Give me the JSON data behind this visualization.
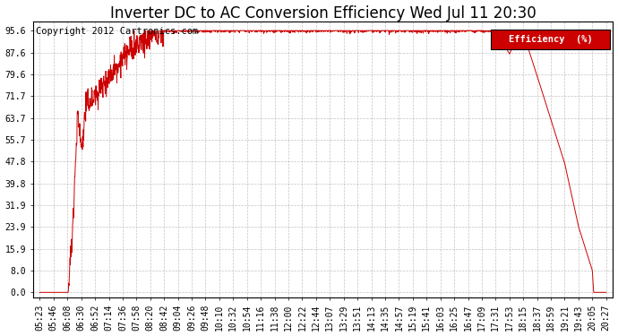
{
  "title": "Inverter DC to AC Conversion Efficiency Wed Jul 11 20:30",
  "copyright": "Copyright 2012 Cartronics.com",
  "legend_label": "Efficiency  (%)",
  "legend_bg": "#cc0000",
  "legend_fg": "#ffffff",
  "line_color": "#cc0000",
  "bg_color": "#ffffff",
  "grid_color": "#aaaaaa",
  "yticks": [
    0.0,
    8.0,
    15.9,
    23.9,
    31.9,
    39.8,
    47.8,
    55.7,
    63.7,
    71.7,
    79.6,
    87.6,
    95.6
  ],
  "xtick_labels": [
    "05:23",
    "05:46",
    "06:08",
    "06:30",
    "06:52",
    "07:14",
    "07:36",
    "07:58",
    "08:20",
    "08:42",
    "09:04",
    "09:26",
    "09:48",
    "10:10",
    "10:32",
    "10:54",
    "11:16",
    "11:38",
    "12:00",
    "12:22",
    "12:44",
    "13:07",
    "13:29",
    "13:51",
    "14:13",
    "14:35",
    "14:57",
    "15:19",
    "15:41",
    "16:03",
    "16:25",
    "16:47",
    "17:09",
    "17:31",
    "17:53",
    "18:15",
    "18:37",
    "18:59",
    "19:21",
    "19:43",
    "20:05",
    "20:27"
  ],
  "ylim": [
    -2.0,
    99.0
  ],
  "title_fontsize": 12,
  "tick_fontsize": 7,
  "copyright_fontsize": 7.5
}
